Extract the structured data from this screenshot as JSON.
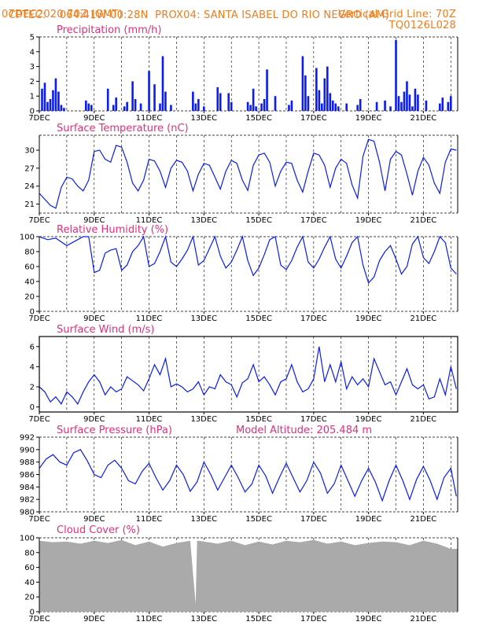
{
  "header": {
    "line1_left": "CPTEC:",
    "line1_coords": "064:41W-00:28N",
    "line1_station": "PROX04: SANTA ISABEL DO RIO NEGRO (AM)",
    "line2_left": "07DEC2020 70Z (GMT)",
    "line2_right": "Vertical Grid Line: 70Z",
    "line3_right": "TQ0126L028"
  },
  "colors": {
    "header": "#f07c1c",
    "title": "#e0307c",
    "data": "#0a1cf0",
    "cloud": "#aaaaaa",
    "frame": "#000000"
  },
  "chart_data": [
    {
      "id": "precip",
      "type": "bar",
      "title": "Precipitation (mm/h)",
      "ylim": [
        0,
        5
      ],
      "yticks": [
        "0",
        "1",
        "2",
        "3",
        "4",
        "5"
      ],
      "x_day_range": [
        7.0,
        22.25
      ],
      "xticks": [
        "7DEC",
        "9DEC",
        "11DEC",
        "13DEC",
        "15DEC",
        "17DEC",
        "19DEC",
        "21DEC"
      ],
      "x": [
        7.1,
        7.2,
        7.3,
        7.4,
        7.5,
        7.6,
        7.7,
        7.8,
        7.9,
        8.7,
        8.8,
        8.9,
        9.5,
        9.7,
        9.8,
        10.1,
        10.2,
        10.4,
        10.5,
        10.7,
        11.0,
        11.2,
        11.4,
        11.5,
        11.6,
        11.8,
        12.6,
        12.7,
        12.8,
        13.0,
        13.5,
        13.6,
        13.9,
        14.0,
        14.6,
        14.7,
        14.8,
        14.9,
        15.1,
        15.2,
        15.3,
        15.6,
        16.1,
        16.2,
        16.6,
        16.7,
        16.8,
        17.1,
        17.2,
        17.3,
        17.4,
        17.5,
        17.6,
        17.7,
        17.8,
        17.9,
        18.2,
        18.6,
        18.7,
        19.3,
        19.6,
        19.8,
        20.0,
        20.1,
        20.2,
        20.3,
        20.4,
        20.5,
        20.6,
        20.7,
        20.8,
        21.1,
        21.6,
        21.7,
        21.9,
        22.0
      ],
      "values": [
        1.5,
        1.9,
        0.6,
        0.8,
        1.4,
        2.2,
        1.3,
        0.4,
        0.2,
        0.7,
        0.5,
        0.4,
        1.5,
        0.4,
        0.9,
        0.3,
        0.6,
        2.0,
        0.8,
        0.5,
        2.7,
        1.8,
        0.5,
        3.7,
        1.3,
        0.4,
        1.3,
        0.5,
        0.8,
        0.3,
        1.6,
        1.2,
        1.2,
        0.6,
        0.6,
        0.4,
        1.5,
        0.3,
        0.5,
        0.8,
        2.8,
        1.0,
        0.4,
        0.7,
        3.7,
        2.4,
        1.0,
        2.9,
        1.4,
        0.5,
        2.2,
        3.0,
        1.2,
        0.7,
        0.5,
        0.3,
        0.5,
        0.4,
        0.8,
        0.6,
        0.7,
        0.3,
        4.8,
        1.0,
        0.6,
        1.3,
        2.0,
        1.1,
        0.3,
        1.5,
        1.1,
        0.7,
        0.5,
        0.9,
        0.6,
        1.0
      ]
    },
    {
      "id": "temp",
      "type": "line",
      "title": "Surface Temperature (nC)",
      "ylim": [
        19.5,
        32.5
      ],
      "yticks": [
        "21",
        "24",
        "27",
        "30"
      ],
      "x_day_range": [
        7.0,
        22.25
      ],
      "xticks": [
        "7DEC",
        "9DEC",
        "11DEC",
        "13DEC",
        "15DEC",
        "17DEC",
        "19DEC",
        "21DEC"
      ],
      "x": [
        7.0,
        7.2,
        7.4,
        7.6,
        7.8,
        8.0,
        8.2,
        8.4,
        8.6,
        8.8,
        9.0,
        9.2,
        9.4,
        9.6,
        9.8,
        10.0,
        10.2,
        10.4,
        10.6,
        10.8,
        11.0,
        11.2,
        11.4,
        11.6,
        11.8,
        12.0,
        12.2,
        12.4,
        12.6,
        12.8,
        13.0,
        13.2,
        13.4,
        13.6,
        13.8,
        14.0,
        14.2,
        14.4,
        14.6,
        14.8,
        15.0,
        15.2,
        15.4,
        15.6,
        15.8,
        16.0,
        16.2,
        16.4,
        16.6,
        16.8,
        17.0,
        17.2,
        17.4,
        17.6,
        17.8,
        18.0,
        18.2,
        18.4,
        18.6,
        18.8,
        19.0,
        19.2,
        19.4,
        19.6,
        19.8,
        20.0,
        20.2,
        20.4,
        20.6,
        20.8,
        21.0,
        21.2,
        21.4,
        21.6,
        21.8,
        22.0,
        22.2
      ],
      "values": [
        22.8,
        21.8,
        20.8,
        20.3,
        23.8,
        25.5,
        25.2,
        24.0,
        23.2,
        25.0,
        29.8,
        30.0,
        28.5,
        28.0,
        30.8,
        30.5,
        28.0,
        24.5,
        23.2,
        25.0,
        28.5,
        28.2,
        26.5,
        23.8,
        27.0,
        28.3,
        28.0,
        26.5,
        23.2,
        26.0,
        27.8,
        27.5,
        25.5,
        23.5,
        26.5,
        28.3,
        27.8,
        25.0,
        23.3,
        27.5,
        29.2,
        29.5,
        28.0,
        24.0,
        26.5,
        28.0,
        27.8,
        25.0,
        23.0,
        26.5,
        29.5,
        29.2,
        27.5,
        23.8,
        27.0,
        28.5,
        27.8,
        24.2,
        22.0,
        29.0,
        31.8,
        31.5,
        28.0,
        23.2,
        28.5,
        29.8,
        29.2,
        26.0,
        22.5,
        26.5,
        28.8,
        27.5,
        24.5,
        22.8,
        28.0,
        30.2,
        30.0
      ]
    },
    {
      "id": "rh",
      "type": "line",
      "title": "Relative Humidity (%)",
      "ylim": [
        0,
        100
      ],
      "yticks": [
        "0",
        "20",
        "40",
        "60",
        "80",
        "100"
      ],
      "x_day_range": [
        7.0,
        22.25
      ],
      "xticks": [
        "7DEC",
        "9DEC",
        "11DEC",
        "13DEC",
        "15DEC",
        "17DEC",
        "19DEC",
        "21DEC"
      ],
      "x": [
        7.0,
        7.3,
        7.6,
        8.0,
        8.3,
        8.6,
        8.8,
        9.0,
        9.2,
        9.4,
        9.6,
        9.8,
        10.0,
        10.2,
        10.4,
        10.6,
        10.8,
        11.0,
        11.2,
        11.4,
        11.6,
        11.8,
        12.0,
        12.2,
        12.4,
        12.6,
        12.8,
        13.0,
        13.2,
        13.4,
        13.6,
        13.8,
        14.0,
        14.2,
        14.4,
        14.6,
        14.8,
        15.0,
        15.2,
        15.4,
        15.6,
        15.8,
        16.0,
        16.2,
        16.4,
        16.6,
        16.8,
        17.0,
        17.2,
        17.4,
        17.6,
        17.8,
        18.0,
        18.2,
        18.4,
        18.6,
        18.8,
        19.0,
        19.2,
        19.4,
        19.6,
        19.8,
        20.0,
        20.2,
        20.4,
        20.6,
        20.8,
        21.0,
        21.2,
        21.4,
        21.6,
        21.8,
        22.0,
        22.2
      ],
      "values": [
        100,
        96,
        98,
        88,
        94,
        100,
        100,
        52,
        55,
        78,
        82,
        84,
        55,
        62,
        80,
        88,
        100,
        60,
        64,
        80,
        100,
        66,
        60,
        70,
        82,
        100,
        62,
        68,
        84,
        100,
        74,
        58,
        66,
        82,
        100,
        68,
        48,
        58,
        76,
        96,
        100,
        62,
        56,
        68,
        86,
        100,
        66,
        58,
        70,
        86,
        100,
        70,
        58,
        74,
        92,
        100,
        62,
        38,
        46,
        68,
        80,
        88,
        70,
        50,
        60,
        90,
        100,
        72,
        64,
        80,
        100,
        92,
        58,
        50
      ]
    },
    {
      "id": "wind",
      "type": "line",
      "title": "Surface Wind (m/s)",
      "ylim": [
        -0.5,
        7.0
      ],
      "yticks": [
        "0",
        "2",
        "4",
        "6"
      ],
      "x_day_range": [
        7.0,
        22.25
      ],
      "xticks": [
        "7DEC",
        "9DEC",
        "11DEC",
        "13DEC",
        "15DEC",
        "17DEC",
        "19DEC",
        "21DEC"
      ],
      "x": [
        7.0,
        7.2,
        7.4,
        7.6,
        7.8,
        8.0,
        8.2,
        8.4,
        8.6,
        8.8,
        9.0,
        9.2,
        9.4,
        9.6,
        9.8,
        10.0,
        10.2,
        10.4,
        10.6,
        10.8,
        11.0,
        11.2,
        11.4,
        11.6,
        11.8,
        12.0,
        12.2,
        12.4,
        12.6,
        12.8,
        13.0,
        13.2,
        13.4,
        13.6,
        13.8,
        14.0,
        14.2,
        14.4,
        14.6,
        14.8,
        15.0,
        15.2,
        15.4,
        15.6,
        15.8,
        16.0,
        16.2,
        16.4,
        16.6,
        16.8,
        17.0,
        17.2,
        17.4,
        17.6,
        17.8,
        18.0,
        18.2,
        18.4,
        18.6,
        18.8,
        19.0,
        19.2,
        19.4,
        19.6,
        19.8,
        20.0,
        20.2,
        20.4,
        20.6,
        20.8,
        21.0,
        21.2,
        21.4,
        21.6,
        21.8,
        22.0,
        22.2
      ],
      "values": [
        2.0,
        1.5,
        0.5,
        1.0,
        0.3,
        1.5,
        1.0,
        0.3,
        1.5,
        2.5,
        3.2,
        2.5,
        1.2,
        2.0,
        1.5,
        1.8,
        3.0,
        2.6,
        2.2,
        1.6,
        2.8,
        4.2,
        3.2,
        4.8,
        2.0,
        2.3,
        2.0,
        1.5,
        1.8,
        2.5,
        1.2,
        2.0,
        1.8,
        3.2,
        2.5,
        2.2,
        1.0,
        2.4,
        2.8,
        4.2,
        2.5,
        3.0,
        2.2,
        1.2,
        2.5,
        2.8,
        4.2,
        2.5,
        1.5,
        1.8,
        2.8,
        6.0,
        2.5,
        4.2,
        2.5,
        4.5,
        1.8,
        3.0,
        2.2,
        2.8,
        2.0,
        4.8,
        3.5,
        2.2,
        2.5,
        1.2,
        2.5,
        3.8,
        2.2,
        1.8,
        2.2,
        0.8,
        1.0,
        2.8,
        1.2,
        4.0,
        1.8
      ]
    },
    {
      "id": "pressure",
      "type": "line",
      "title": "Surface Pressure (hPa)",
      "annotation": "Model Altitude: 205.484 m",
      "ylim": [
        980,
        992
      ],
      "yticks": [
        "980",
        "982",
        "984",
        "986",
        "988",
        "990",
        "992"
      ],
      "x_day_range": [
        7.0,
        22.25
      ],
      "xticks": [
        "7DEC",
        "9DEC",
        "11DEC",
        "13DEC",
        "15DEC",
        "17DEC",
        "19DEC",
        "21DEC"
      ],
      "x": [
        7.0,
        7.25,
        7.5,
        7.75,
        8.0,
        8.25,
        8.5,
        8.75,
        9.0,
        9.25,
        9.5,
        9.75,
        10.0,
        10.25,
        10.5,
        10.75,
        11.0,
        11.25,
        11.5,
        11.75,
        12.0,
        12.25,
        12.5,
        12.75,
        13.0,
        13.25,
        13.5,
        13.75,
        14.0,
        14.25,
        14.5,
        14.75,
        15.0,
        15.25,
        15.5,
        15.75,
        16.0,
        16.25,
        16.5,
        16.75,
        17.0,
        17.25,
        17.5,
        17.75,
        18.0,
        18.25,
        18.5,
        18.75,
        19.0,
        19.25,
        19.5,
        19.75,
        20.0,
        20.25,
        20.5,
        20.75,
        21.0,
        21.25,
        21.5,
        21.75,
        22.0,
        22.2
      ],
      "values": [
        987.0,
        988.5,
        989.2,
        988.0,
        987.5,
        989.5,
        990.0,
        988.2,
        986.0,
        985.5,
        987.5,
        988.3,
        987.0,
        985.0,
        984.5,
        986.5,
        987.8,
        985.5,
        983.5,
        985.0,
        987.5,
        986.0,
        983.3,
        984.8,
        988.0,
        986.0,
        983.5,
        985.5,
        987.5,
        985.5,
        983.2,
        984.5,
        987.5,
        985.8,
        983.0,
        985.5,
        987.8,
        985.5,
        983.2,
        985.0,
        988.0,
        986.2,
        983.0,
        984.5,
        987.5,
        985.0,
        982.5,
        985.0,
        987.0,
        984.8,
        981.8,
        985.0,
        987.5,
        985.0,
        982.0,
        985.2,
        987.3,
        985.0,
        982.0,
        985.5,
        987.0,
        982.5
      ]
    },
    {
      "id": "cloud",
      "type": "area",
      "title": "Cloud Cover (%)",
      "ylim": [
        0,
        100
      ],
      "yticks": [
        "0",
        "20",
        "40",
        "60",
        "80",
        "100"
      ],
      "x_day_range": [
        7.0,
        22.25
      ],
      "xticks": [
        "7DEC",
        "9DEC",
        "11DEC",
        "13DEC",
        "15DEC",
        "17DEC",
        "19DEC",
        "21DEC"
      ],
      "x": [
        7.0,
        7.5,
        8.0,
        8.5,
        9.0,
        9.5,
        10.0,
        10.5,
        11.0,
        11.5,
        12.0,
        12.5,
        12.7,
        12.75,
        12.8,
        13.0,
        13.5,
        14.0,
        14.5,
        15.0,
        15.5,
        16.0,
        16.5,
        17.0,
        17.5,
        18.0,
        18.5,
        19.0,
        19.5,
        20.0,
        20.5,
        21.0,
        21.5,
        22.0,
        22.25
      ],
      "values": [
        96,
        94,
        95,
        92,
        96,
        93,
        97,
        90,
        95,
        88,
        93,
        96,
        10,
        96,
        96,
        95,
        92,
        96,
        90,
        95,
        91,
        96,
        94,
        97,
        92,
        95,
        90,
        93,
        95,
        94,
        90,
        96,
        92,
        85,
        85
      ]
    }
  ]
}
